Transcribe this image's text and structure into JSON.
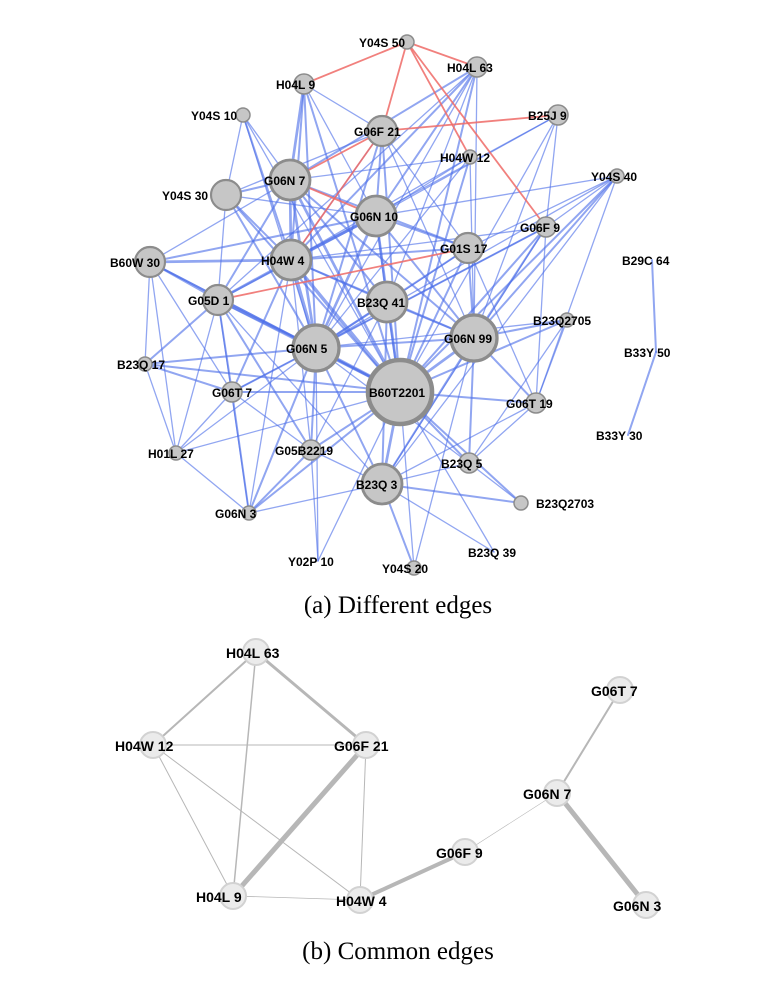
{
  "panel_a": {
    "caption": "(a) Different edges",
    "nodes": [
      {
        "id": "Y04S_50",
        "code": "Y04S",
        "num": "50",
        "size": 1
      },
      {
        "id": "H04L_63",
        "code": "H04L",
        "num": "63",
        "size": 2
      },
      {
        "id": "H04L_9",
        "code": "H04L",
        "num": "9",
        "size": 2
      },
      {
        "id": "Y04S_10",
        "code": "Y04S",
        "num": "10",
        "size": 1
      },
      {
        "id": "G06F_21",
        "code": "G06F",
        "num": "21",
        "size": 3
      },
      {
        "id": "B25J_9",
        "code": "B25J",
        "num": "9",
        "size": 2
      },
      {
        "id": "H04W_12",
        "code": "H04W",
        "num": "12",
        "size": 1
      },
      {
        "id": "G06N_7",
        "code": "G06N",
        "num": "7",
        "size": 4
      },
      {
        "id": "Y04S_40",
        "code": "Y04S",
        "num": "40",
        "size": 1
      },
      {
        "id": "Y04S_30",
        "code": "Y04S",
        "num": "30",
        "size": 3
      },
      {
        "id": "G06N_10",
        "code": "G06N",
        "num": "10",
        "size": 4
      },
      {
        "id": "G06F_9",
        "code": "G06F",
        "num": "9",
        "size": 2
      },
      {
        "id": "B29C_64",
        "code": "B29C",
        "num": "64",
        "size": 0
      },
      {
        "id": "B60W_30",
        "code": "B60W",
        "num": "30",
        "size": 3
      },
      {
        "id": "H04W_4",
        "code": "H04W",
        "num": "4",
        "size": 4
      },
      {
        "id": "G01S_17",
        "code": "G01S",
        "num": "17",
        "size": 3
      },
      {
        "id": "G05D_1",
        "code": "G05D",
        "num": "1",
        "size": 3
      },
      {
        "id": "B23Q_41",
        "code": "B23Q",
        "num": "41",
        "size": 4
      },
      {
        "id": "B23Q2705",
        "code": "B23Q2705",
        "num": "",
        "size": 1
      },
      {
        "id": "G06N_99",
        "code": "G06N",
        "num": "99",
        "size": 5
      },
      {
        "id": "G06N_5",
        "code": "G06N",
        "num": "5",
        "size": 5
      },
      {
        "id": "B33Y_50",
        "code": "B33Y",
        "num": "50",
        "size": 0
      },
      {
        "id": "B23Q_17",
        "code": "B23Q",
        "num": "17",
        "size": 1
      },
      {
        "id": "G06T_7",
        "code": "G06T",
        "num": "7",
        "size": 2
      },
      {
        "id": "B60T2201",
        "code": "B60T2201",
        "num": "",
        "size": 6
      },
      {
        "id": "G06T_19",
        "code": "G06T",
        "num": "19",
        "size": 2
      },
      {
        "id": "H01L_27",
        "code": "H01L",
        "num": "27",
        "size": 1
      },
      {
        "id": "G05B2219",
        "code": "G05B2219",
        "num": "",
        "size": 2
      },
      {
        "id": "B23Q_5",
        "code": "B23Q",
        "num": "5",
        "size": 2
      },
      {
        "id": "B33Y_30",
        "code": "B33Y",
        "num": "30",
        "size": 0
      },
      {
        "id": "B23Q_3",
        "code": "B23Q",
        "num": "3",
        "size": 4
      },
      {
        "id": "B23Q2703",
        "code": "B23Q2703",
        "num": "",
        "size": 1
      },
      {
        "id": "G06N_3",
        "code": "G06N",
        "num": "3",
        "size": 1
      },
      {
        "id": "Y02P_10",
        "code": "Y02P",
        "num": "10",
        "size": 0
      },
      {
        "id": "Y04S_20",
        "code": "Y04S",
        "num": "20",
        "size": 1
      },
      {
        "id": "B23Q_39",
        "code": "B23Q",
        "num": "39",
        "size": 0
      }
    ],
    "red_edges": [
      [
        "Y04S_50",
        "H04L_63"
      ],
      [
        "Y04S_50",
        "H04L_9"
      ],
      [
        "Y04S_50",
        "G06F_21"
      ],
      [
        "Y04S_50",
        "H04W_12"
      ],
      [
        "Y04S_50",
        "G06F_9"
      ],
      [
        "G06F_21",
        "B25J_9"
      ],
      [
        "G06F_21",
        "G06N_7"
      ],
      [
        "G06N_7",
        "G06N_10"
      ],
      [
        "G05D_1",
        "G01S_17"
      ],
      [
        "H04W_4",
        "G06F_21"
      ]
    ],
    "blue_edges": [
      [
        "B29C_64",
        "B33Y_50",
        2
      ],
      [
        "B33Y_50",
        "B33Y_30",
        2
      ],
      [
        "H04L_63",
        "G06N_7",
        2
      ],
      [
        "H04L_63",
        "G06N_10",
        2
      ],
      [
        "H04L_63",
        "B60T2201",
        2
      ],
      [
        "H04L_63",
        "G06N_5",
        1
      ],
      [
        "H04L_63",
        "H04W_4",
        2
      ],
      [
        "H04L_63",
        "B23Q_41",
        1
      ],
      [
        "H04L_63",
        "G06N_99",
        1
      ],
      [
        "H04L_63",
        "G05D_1",
        1
      ],
      [
        "H04L_9",
        "G06N_7",
        3
      ],
      [
        "H04L_9",
        "H04W_4",
        2
      ],
      [
        "H04L_9",
        "G06N_5",
        2
      ],
      [
        "H04L_9",
        "B60T2201",
        2
      ],
      [
        "H04L_9",
        "G06N_10",
        1
      ],
      [
        "H04L_9",
        "G06F_21",
        1
      ],
      [
        "Y04S_10",
        "G06N_7",
        1
      ],
      [
        "Y04S_10",
        "H04W_4",
        2
      ],
      [
        "Y04S_10",
        "B60T2201",
        1
      ],
      [
        "Y04S_10",
        "G06N_5",
        1
      ],
      [
        "Y04S_10",
        "Y04S_30",
        1
      ],
      [
        "G06F_21",
        "G06N_10",
        2
      ],
      [
        "G06F_21",
        "B60T2201",
        2
      ],
      [
        "G06F_21",
        "G06N_5",
        2
      ],
      [
        "G06F_21",
        "H04W_4",
        1
      ],
      [
        "G06F_21",
        "G06N_99",
        1
      ],
      [
        "G06F_21",
        "G01S_17",
        1
      ],
      [
        "G06F_21",
        "Y04S_30",
        1
      ],
      [
        "B25J_9",
        "G06N_99",
        1
      ],
      [
        "B25J_9",
        "B60T2201",
        1
      ],
      [
        "B25J_9",
        "G06N_10",
        1
      ],
      [
        "B25J_9",
        "G06F_9",
        1
      ],
      [
        "B25J_9",
        "H04W_4",
        1
      ],
      [
        "H04W_12",
        "G06N_5",
        1
      ],
      [
        "H04W_12",
        "B60T2201",
        2
      ],
      [
        "H04W_12",
        "G06N_10",
        1
      ],
      [
        "H04W_12",
        "H04W_4",
        1
      ],
      [
        "H04W_12",
        "G06N_7",
        1
      ],
      [
        "H04W_12",
        "G06N_99",
        1
      ],
      [
        "G06N_7",
        "H04W_4",
        3
      ],
      [
        "G06N_7",
        "G06N_5",
        3
      ],
      [
        "G06N_7",
        "B60T2201",
        3
      ],
      [
        "G06N_7",
        "B23Q_41",
        2
      ],
      [
        "G06N_7",
        "G01S_17",
        2
      ],
      [
        "G06N_7",
        "B60W_30",
        1
      ],
      [
        "G06N_7",
        "G05D_1",
        2
      ],
      [
        "G06N_7",
        "G06N_99",
        2
      ],
      [
        "G06N_7",
        "Y04S_30",
        2
      ],
      [
        "Y04S_40",
        "G06N_10",
        1
      ],
      [
        "Y04S_40",
        "G01S_17",
        1
      ],
      [
        "Y04S_40",
        "B60T2201",
        2
      ],
      [
        "Y04S_40",
        "G06N_5",
        1
      ],
      [
        "Y04S_40",
        "G06N_99",
        2
      ],
      [
        "Y04S_40",
        "G06F_9",
        1
      ],
      [
        "Y04S_40",
        "B23Q_3",
        1
      ],
      [
        "Y04S_40",
        "G06T_19",
        1
      ],
      [
        "Y04S_30",
        "H04W_4",
        2
      ],
      [
        "Y04S_30",
        "G06N_5",
        2
      ],
      [
        "Y04S_30",
        "B60T2201",
        2
      ],
      [
        "Y04S_30",
        "G06N_10",
        1
      ],
      [
        "Y04S_30",
        "G05D_1",
        1
      ],
      [
        "G06N_10",
        "H04W_4",
        3
      ],
      [
        "G06N_10",
        "G06N_5",
        3
      ],
      [
        "G06N_10",
        "B60T2201",
        3
      ],
      [
        "G06N_10",
        "G06N_99",
        2
      ],
      [
        "G06N_10",
        "G01S_17",
        2
      ],
      [
        "G06N_10",
        "B23Q_41",
        2
      ],
      [
        "G06N_10",
        "B60W_30",
        2
      ],
      [
        "G06N_10",
        "G05D_1",
        2
      ],
      [
        "G06F_9",
        "G06N_99",
        2
      ],
      [
        "G06F_9",
        "B60T2201",
        2
      ],
      [
        "G06F_9",
        "G06N_5",
        2
      ],
      [
        "G06F_9",
        "H04W_4",
        1
      ],
      [
        "G06F_9",
        "B23Q_3",
        1
      ],
      [
        "G06F_9",
        "G06T_19",
        1
      ],
      [
        "G06F_9",
        "G06T_7",
        1
      ],
      [
        "B60W_30",
        "H04W_4",
        3
      ],
      [
        "B60W_30",
        "G06N_5",
        2
      ],
      [
        "B60W_30",
        "B60T2201",
        2
      ],
      [
        "B60W_30",
        "G05D_1",
        2
      ],
      [
        "B60W_30",
        "G06T_7",
        1
      ],
      [
        "B60W_30",
        "H01L_27",
        1
      ],
      [
        "B60W_30",
        "B23Q_17",
        1
      ],
      [
        "H04W_4",
        "G06N_5",
        4
      ],
      [
        "H04W_4",
        "B60T2201",
        4
      ],
      [
        "H04W_4",
        "G05D_1",
        3
      ],
      [
        "H04W_4",
        "B23Q_41",
        2
      ],
      [
        "H04W_4",
        "G01S_17",
        2
      ],
      [
        "H04W_4",
        "G06N_99",
        2
      ],
      [
        "H04W_4",
        "G06T_7",
        2
      ],
      [
        "H04W_4",
        "G05B2219",
        1
      ],
      [
        "H04W_4",
        "G06N_3",
        1
      ],
      [
        "G01S_17",
        "B60T2201",
        2
      ],
      [
        "G01S_17",
        "G06N_5",
        2
      ],
      [
        "G01S_17",
        "G06N_99",
        2
      ],
      [
        "G01S_17",
        "B23Q_41",
        1
      ],
      [
        "G01S_17",
        "G06T_19",
        1
      ],
      [
        "G05D_1",
        "G06N_5",
        3
      ],
      [
        "G05D_1",
        "B60T2201",
        3
      ],
      [
        "G05D_1",
        "G06T_7",
        2
      ],
      [
        "G05D_1",
        "B23Q_17",
        2
      ],
      [
        "G05D_1",
        "H01L_27",
        1
      ],
      [
        "G05D_1",
        "G05B2219",
        2
      ],
      [
        "G05D_1",
        "G06N_3",
        1
      ],
      [
        "G05D_1",
        "B23Q_3",
        1
      ],
      [
        "B23Q_41",
        "B60T2201",
        2
      ],
      [
        "B23Q_41",
        "G06N_5",
        2
      ],
      [
        "B23Q_41",
        "G06N_99",
        2
      ],
      [
        "B23Q_41",
        "B23Q_3",
        2
      ],
      [
        "B23Q_41",
        "G05B2219",
        1
      ],
      [
        "B23Q2705",
        "G06N_99",
        2
      ],
      [
        "B23Q2705",
        "B60T2201",
        2
      ],
      [
        "B23Q2705",
        "G06N_5",
        1
      ],
      [
        "B23Q2705",
        "G06T_19",
        1
      ],
      [
        "B23Q2705",
        "B23Q_5",
        1
      ],
      [
        "G06N_99",
        "B60T2201",
        3
      ],
      [
        "G06N_99",
        "G06N_5",
        2
      ],
      [
        "G06N_99",
        "G06T_19",
        2
      ],
      [
        "G06N_99",
        "B23Q_5",
        2
      ],
      [
        "G06N_99",
        "B23Q_3",
        2
      ],
      [
        "G06N_99",
        "Y04S_20",
        1
      ],
      [
        "G06N_5",
        "B60T2201",
        4
      ],
      [
        "G06N_5",
        "G06T_7",
        2
      ],
      [
        "G06N_5",
        "G05B2219",
        2
      ],
      [
        "G06N_5",
        "B23Q_3",
        2
      ],
      [
        "G06N_5",
        "G06N_3",
        2
      ],
      [
        "G06N_5",
        "B23Q_17",
        2
      ],
      [
        "G06N_5",
        "H01L_27",
        1
      ],
      [
        "G06N_5",
        "Y02P_10",
        1
      ],
      [
        "G06N_5",
        "B23Q_5",
        1
      ],
      [
        "B23Q_17",
        "G06T_7",
        2
      ],
      [
        "B23Q_17",
        "B60T2201",
        2
      ],
      [
        "B23Q_17",
        "H01L_27",
        1
      ],
      [
        "G06T_7",
        "B60T2201",
        2
      ],
      [
        "G06T_7",
        "G06N_3",
        2
      ],
      [
        "G06T_7",
        "H01L_27",
        1
      ],
      [
        "G06T_7",
        "G05B2219",
        1
      ],
      [
        "B60T2201",
        "G06T_19",
        2
      ],
      [
        "B60T2201",
        "B23Q_5",
        2
      ],
      [
        "B60T2201",
        "B23Q_3",
        3
      ],
      [
        "B60T2201",
        "G05B2219",
        2
      ],
      [
        "B60T2201",
        "B23Q2703",
        2
      ],
      [
        "B60T2201",
        "G06N_3",
        2
      ],
      [
        "B60T2201",
        "Y04S_20",
        1
      ],
      [
        "B60T2201",
        "B23Q_39",
        1
      ],
      [
        "B60T2201",
        "Y02P_10",
        1
      ],
      [
        "B60T2201",
        "H01L_27",
        1
      ],
      [
        "G06T_19",
        "B23Q_3",
        1
      ],
      [
        "G06T_19",
        "B23Q_5",
        1
      ],
      [
        "G05B2219",
        "G06N_3",
        2
      ],
      [
        "G05B2219",
        "B23Q_3",
        1
      ],
      [
        "G05B2219",
        "Y02P_10",
        1
      ],
      [
        "B23Q_5",
        "B23Q2703",
        1
      ],
      [
        "B23Q_5",
        "B23Q_3",
        1
      ],
      [
        "B23Q_3",
        "B23Q2703",
        2
      ],
      [
        "B23Q_3",
        "Y04S_20",
        2
      ],
      [
        "B23Q_3",
        "G06N_3",
        1
      ],
      [
        "B23Q_3",
        "B23Q_39",
        1
      ],
      [
        "H01L_27",
        "G06N_3",
        1
      ]
    ]
  },
  "panel_b": {
    "caption": "(b) Common edges",
    "nodes": [
      {
        "id": "H04L_63",
        "code": "H04L",
        "num": "63"
      },
      {
        "id": "H04W_12",
        "code": "H04W",
        "num": "12"
      },
      {
        "id": "G06F_21",
        "code": "G06F",
        "num": "21"
      },
      {
        "id": "G06T_7",
        "code": "G06T",
        "num": "7"
      },
      {
        "id": "G06N_7",
        "code": "G06N",
        "num": "7"
      },
      {
        "id": "G06F_9",
        "code": "G06F",
        "num": "9"
      },
      {
        "id": "H04L_9",
        "code": "H04L",
        "num": "9"
      },
      {
        "id": "H04W_4",
        "code": "H04W",
        "num": "4"
      },
      {
        "id": "G06N_3",
        "code": "G06N",
        "num": "3"
      }
    ],
    "edges": [
      [
        "H04L_63",
        "H04W_12",
        2
      ],
      [
        "H04L_63",
        "G06F_21",
        3
      ],
      [
        "H04L_63",
        "H04L_9",
        1.5
      ],
      [
        "H04W_12",
        "G06F_21",
        1
      ],
      [
        "H04W_12",
        "H04L_9",
        1
      ],
      [
        "H04W_12",
        "H04W_4",
        1
      ],
      [
        "G06F_21",
        "H04L_9",
        5
      ],
      [
        "G06F_21",
        "H04W_4",
        1
      ],
      [
        "H04L_9",
        "H04W_4",
        0.8
      ],
      [
        "H04W_4",
        "G06F_9",
        4
      ],
      [
        "G06F_9",
        "G06N_7",
        0.6
      ],
      [
        "G06N_7",
        "G06T_7",
        2
      ],
      [
        "G06N_7",
        "G06N_3",
        5
      ]
    ]
  }
}
